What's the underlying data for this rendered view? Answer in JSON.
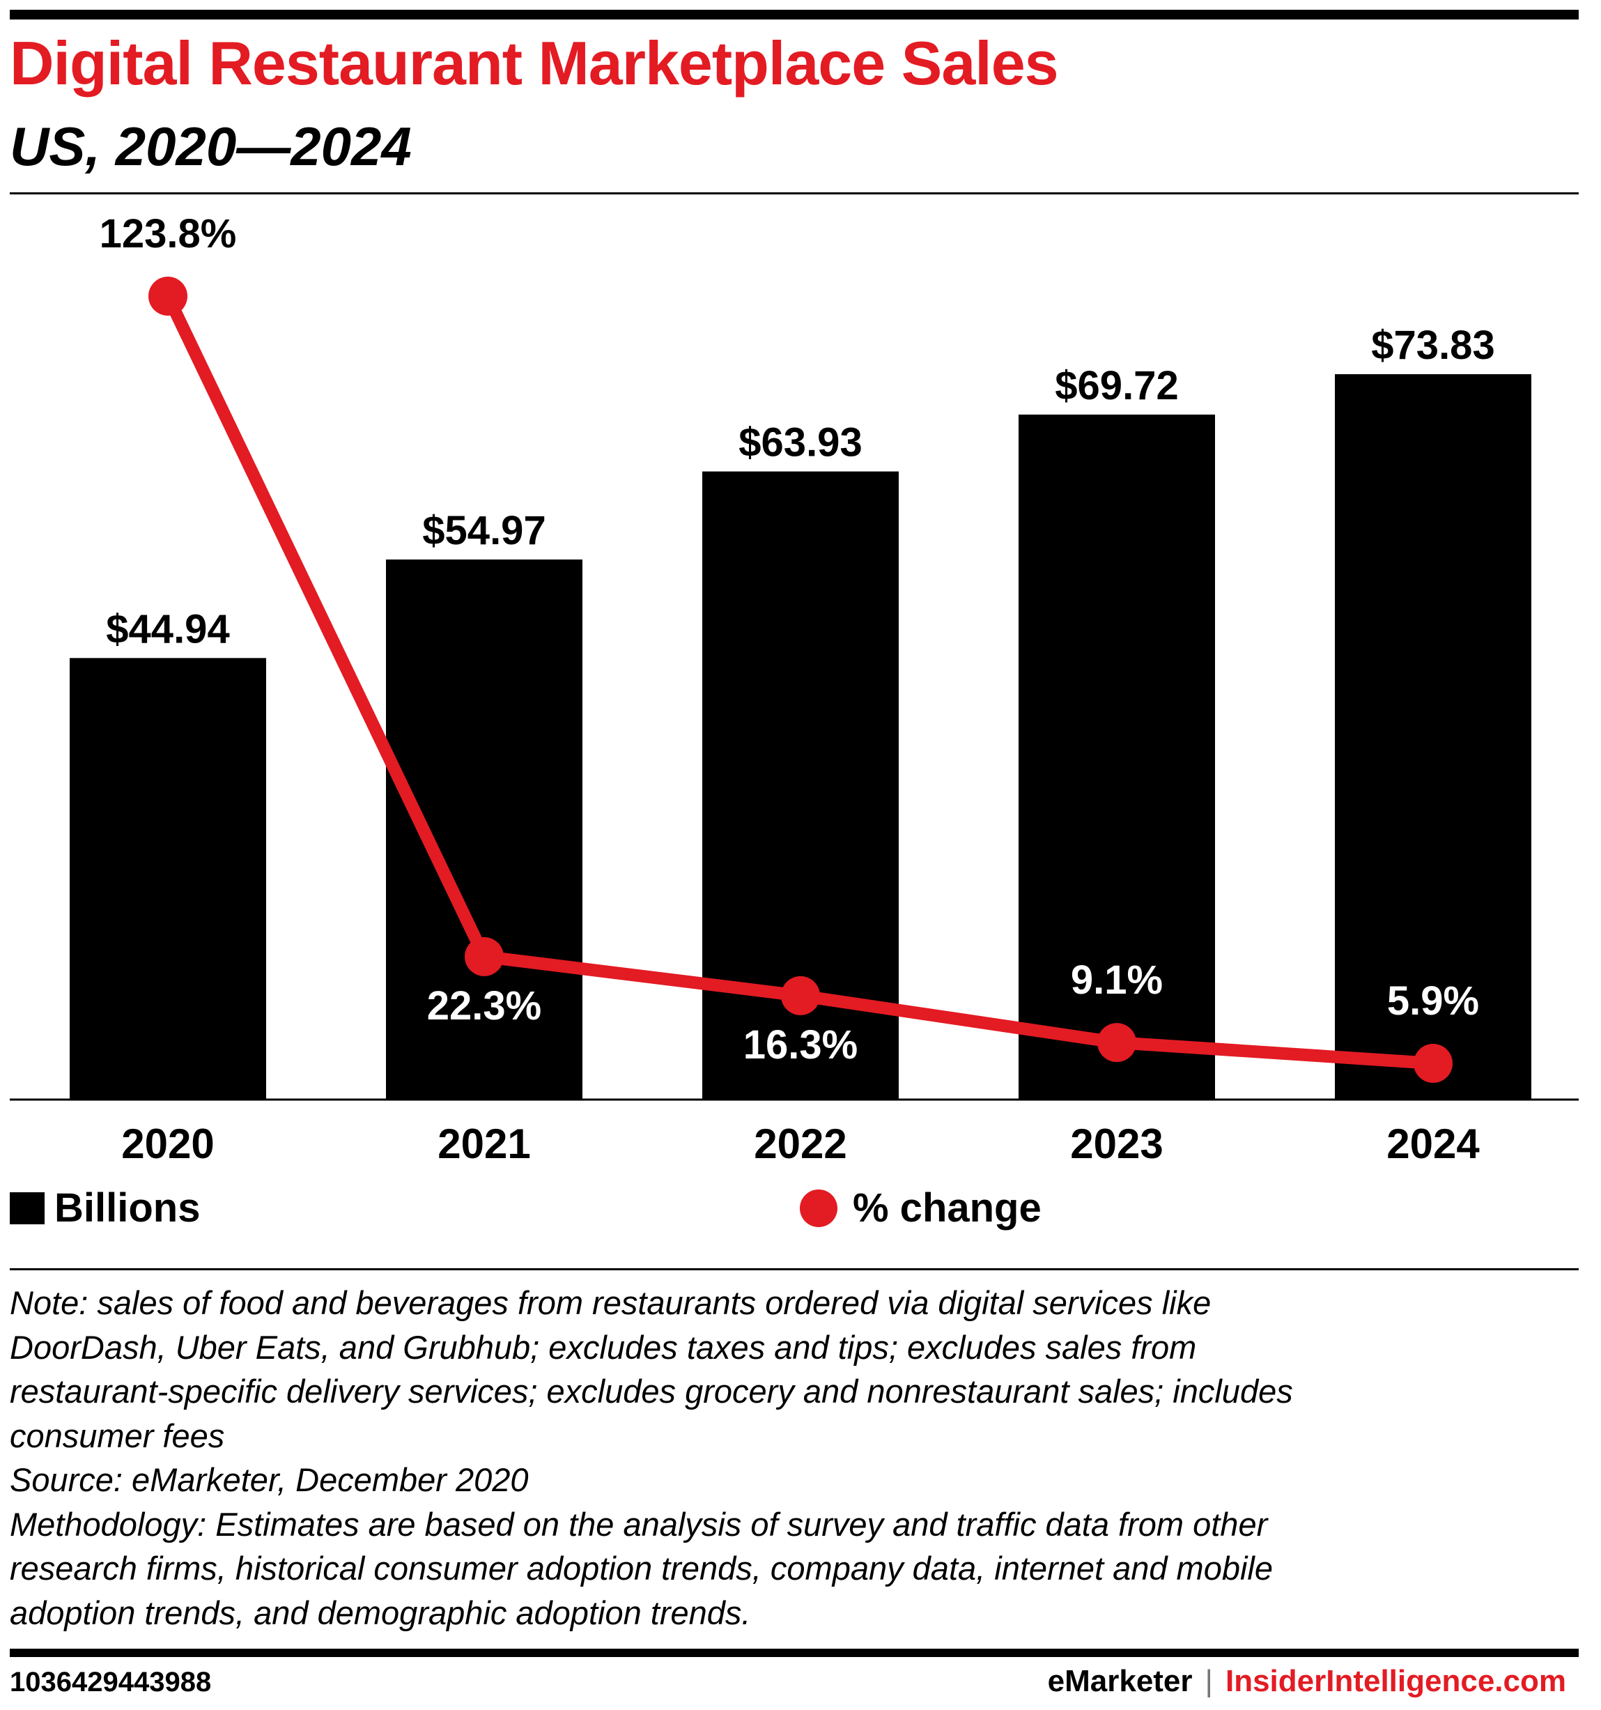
{
  "title": "Digital Restaurant Marketplace Sales",
  "subtitle": "US, 2020—2024",
  "colors": {
    "accent": "#e31b23",
    "bar": "#000000",
    "text": "#000000"
  },
  "chart_data": {
    "type": "bar",
    "categories": [
      "2020",
      "2021",
      "2022",
      "2023",
      "2024"
    ],
    "series": [
      {
        "name": "Billions",
        "kind": "bar",
        "values": [
          44.94,
          54.97,
          63.93,
          69.72,
          73.83
        ],
        "labels": [
          "$44.94",
          "$54.97",
          "$63.93",
          "$69.72",
          "$73.83"
        ]
      },
      {
        "name": "% change",
        "kind": "line",
        "values": [
          123.8,
          22.3,
          16.3,
          9.1,
          5.9
        ],
        "labels": [
          "123.8%",
          "22.3%",
          "16.3%",
          "9.1%",
          "5.9%"
        ]
      }
    ],
    "title": "Digital Restaurant Marketplace Sales",
    "subtitle": "US, 2020—2024",
    "ylim": [
      0,
      80
    ],
    "y2lim": [
      0,
      140
    ],
    "grid": false,
    "legend": "bottom"
  },
  "legend": {
    "bars": "Billions",
    "line": "% change"
  },
  "notes": [
    "Note: sales of food and beverages from restaurants ordered via digital services like",
    "DoorDash, Uber Eats, and Grubhub; excludes taxes and tips; excludes sales from",
    "restaurant-specific delivery services; excludes grocery and nonrestaurant sales; includes",
    "consumer fees",
    "Source: eMarketer, December 2020",
    "Methodology: Estimates are based on the analysis of survey and traffic data from other",
    "research firms, historical consumer adoption trends, company data, internet and mobile",
    "adoption trends, and demographic adoption trends."
  ],
  "footer": {
    "id": "1036429443988",
    "brand1": "eMarketer",
    "separator": "|",
    "brand2": "InsiderIntelligence.com"
  }
}
